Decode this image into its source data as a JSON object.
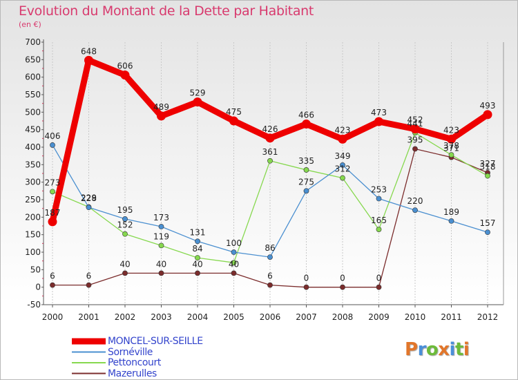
{
  "header": {
    "title": "Evolution du Montant de la Dette par Habitant",
    "unit": "(en €)"
  },
  "logo": {
    "text": "Proxiti",
    "colors": [
      "#e2762a",
      "#4a8fd8",
      "#6dbb3a",
      "#e2762a",
      "#4a8fd8",
      "#6dbb3a",
      "#e2762a"
    ]
  },
  "chart_data": {
    "type": "line",
    "title": "Evolution du Montant de la Dette par Habitant",
    "ylabel": "(en €)",
    "xlabel": "",
    "x": [
      "2000",
      "2001",
      "2002",
      "2003",
      "2004",
      "2005",
      "2006",
      "2007",
      "2008",
      "2009",
      "2010",
      "2011",
      "2012"
    ],
    "ylim": [
      -50,
      700
    ],
    "yticks": [
      -50,
      0,
      50,
      100,
      150,
      200,
      250,
      300,
      350,
      400,
      450,
      500,
      550,
      600,
      650,
      700
    ],
    "grid": "vertical dashed",
    "legend_position": "bottom-left",
    "series": [
      {
        "name": "MONCEL-SUR-SEILLE",
        "color": "#ee0000",
        "values": [
          187,
          648,
          606,
          489,
          529,
          475,
          426,
          466,
          423,
          473,
          452,
          423,
          493
        ],
        "labels": [
          "187",
          "648",
          "606",
          "489",
          "529",
          "475",
          "426",
          "466",
          "423",
          "473",
          "452",
          "423",
          "493"
        ]
      },
      {
        "name": "Sornéville",
        "color": "#4a8fd0",
        "values": [
          406,
          228,
          195,
          173,
          131,
          100,
          86,
          275,
          349,
          253,
          220,
          189,
          157
        ],
        "labels": [
          "406",
          "228",
          "195",
          "173",
          "131",
          "100",
          "86",
          "275",
          "349",
          "253",
          "220",
          "189",
          "157"
        ]
      },
      {
        "name": "Pettoncourt",
        "color": "#86d84e",
        "values": [
          273,
          229,
          152,
          119,
          84,
          70,
          361,
          335,
          312,
          165,
          441,
          378,
          318
        ],
        "labels": [
          "273",
          "229",
          "152",
          "119",
          "84",
          "",
          "361",
          "335",
          "312",
          "165",
          "441",
          "378",
          "318"
        ]
      },
      {
        "name": "Mazerulles",
        "color": "#7b2c2c",
        "values": [
          6,
          6,
          40,
          40,
          40,
          40,
          6,
          0,
          0,
          0,
          395,
          371,
          327
        ],
        "labels": [
          "6",
          "6",
          "40",
          "40",
          "40",
          "40",
          "6",
          "0",
          "0",
          "0",
          "395",
          "371",
          "327"
        ]
      }
    ]
  }
}
